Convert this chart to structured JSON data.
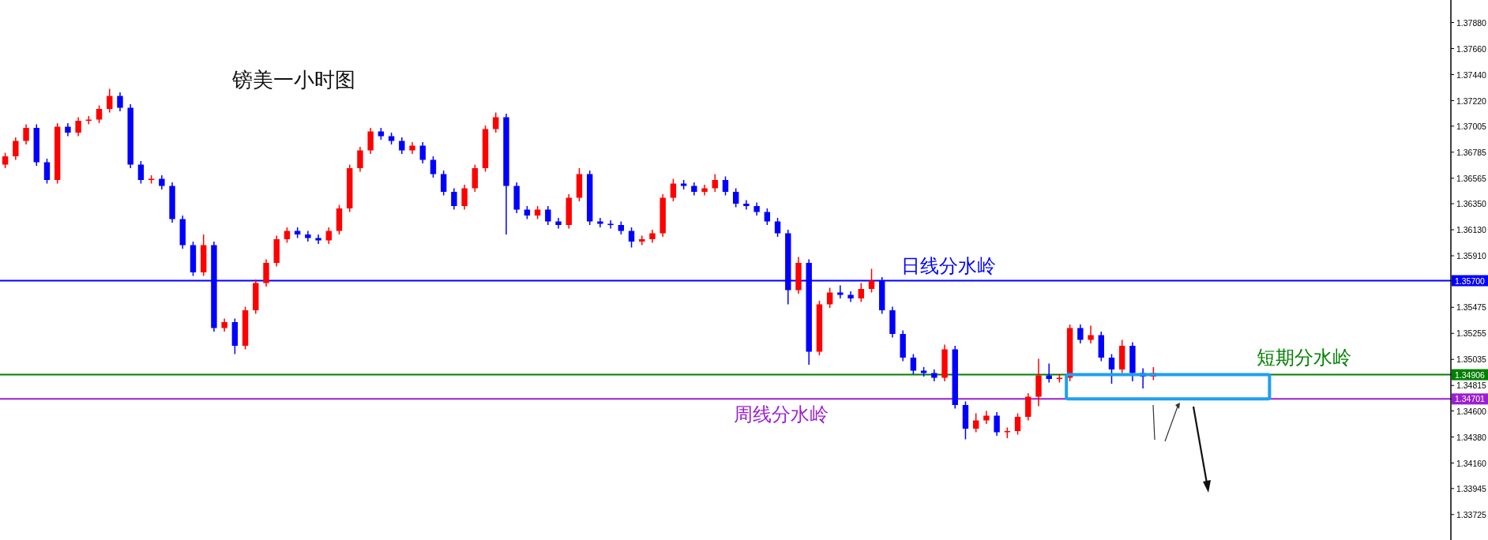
{
  "chart_data": {
    "type": "candlestick",
    "title": "镑美一小时图",
    "categories": [
      null,
      null,
      null,
      null,
      null,
      null,
      null,
      null,
      null,
      null,
      null,
      null,
      null,
      null,
      null,
      null,
      null,
      null,
      null,
      null,
      null,
      null,
      null,
      null,
      null,
      null,
      null,
      null,
      null,
      null,
      null,
      null,
      null,
      null,
      null,
      null,
      null,
      null,
      null,
      null,
      null,
      null,
      null,
      null,
      null,
      null,
      null,
      null,
      null,
      null,
      null,
      null,
      null,
      null,
      null,
      null,
      null,
      null,
      null,
      null,
      null,
      null,
      null,
      null,
      null,
      null,
      null,
      null,
      null,
      null,
      null,
      null,
      null,
      null,
      null,
      null,
      null,
      null,
      null,
      null,
      null,
      null,
      null,
      null,
      null,
      null,
      null,
      null,
      null,
      null,
      null,
      null,
      null,
      null,
      null,
      null,
      null,
      null,
      null,
      null,
      null,
      null,
      null,
      null,
      null,
      null,
      null,
      null,
      null,
      null,
      null,
      null,
      null,
      null,
      null,
      null,
      null,
      null,
      null,
      null,
      null,
      null,
      null,
      null,
      null,
      null,
      null,
      null,
      null,
      null,
      null,
      null,
      null,
      null,
      null,
      null,
      null,
      null,
      null
    ],
    "ohlc": [
      [
        1.3668,
        1.3678,
        1.3665,
        1.3675
      ],
      [
        1.3675,
        1.3691,
        1.3672,
        1.3688
      ],
      [
        1.3688,
        1.3702,
        1.3685,
        1.3699
      ],
      [
        1.3699,
        1.3702,
        1.3667,
        1.367
      ],
      [
        1.367,
        1.3673,
        1.3652,
        1.3655
      ],
      [
        1.3655,
        1.3703,
        1.3652,
        1.37
      ],
      [
        1.37,
        1.3703,
        1.3692,
        1.3695
      ],
      [
        1.3695,
        1.3708,
        1.3692,
        1.3705
      ],
      [
        1.3705,
        1.3709,
        1.3702,
        1.3706
      ],
      [
        1.3706,
        1.3718,
        1.3703,
        1.3715
      ],
      [
        1.3715,
        1.3732,
        1.3712,
        1.3726
      ],
      [
        1.3726,
        1.3729,
        1.3713,
        1.3716
      ],
      [
        1.3716,
        1.3719,
        1.3665,
        1.3668
      ],
      [
        1.3668,
        1.3671,
        1.3652,
        1.3655
      ],
      [
        1.3655,
        1.3659,
        1.3652,
        1.3656
      ],
      [
        1.3656,
        1.3659,
        1.3647,
        1.365
      ],
      [
        1.365,
        1.3653,
        1.3619,
        1.3622
      ],
      [
        1.3622,
        1.3625,
        1.3597,
        1.36
      ],
      [
        1.36,
        1.3603,
        1.3574,
        1.3577
      ],
      [
        1.3577,
        1.3609,
        1.3574,
        1.36
      ],
      [
        1.36,
        1.3603,
        1.3527,
        1.353
      ],
      [
        1.353,
        1.3538,
        1.3527,
        1.3535
      ],
      [
        1.3535,
        1.3538,
        1.3508,
        1.3515
      ],
      [
        1.3515,
        1.3548,
        1.3512,
        1.3545
      ],
      [
        1.3545,
        1.3571,
        1.3542,
        1.3568
      ],
      [
        1.3568,
        1.3588,
        1.3565,
        1.3585
      ],
      [
        1.3585,
        1.3608,
        1.3582,
        1.3605
      ],
      [
        1.3605,
        1.3615,
        1.3602,
        1.3612
      ],
      [
        1.3612,
        1.3615,
        1.3606,
        1.3609
      ],
      [
        1.3609,
        1.3612,
        1.3603,
        1.3606
      ],
      [
        1.3606,
        1.3609,
        1.3601,
        1.3604
      ],
      [
        1.3604,
        1.3615,
        1.3601,
        1.3612
      ],
      [
        1.3612,
        1.3634,
        1.3609,
        1.3631
      ],
      [
        1.3631,
        1.3668,
        1.3628,
        1.3665
      ],
      [
        1.3665,
        1.3683,
        1.3662,
        1.368
      ],
      [
        1.368,
        1.3699,
        1.3677,
        1.3696
      ],
      [
        1.3696,
        1.3699,
        1.3689,
        1.3692
      ],
      [
        1.3692,
        1.3695,
        1.3685,
        1.3688
      ],
      [
        1.3688,
        1.3691,
        1.3677,
        1.368
      ],
      [
        1.368,
        1.3687,
        1.3677,
        1.3684
      ],
      [
        1.3684,
        1.3687,
        1.3669,
        1.3672
      ],
      [
        1.3672,
        1.3675,
        1.3657,
        1.366
      ],
      [
        1.366,
        1.3663,
        1.3642,
        1.3645
      ],
      [
        1.3645,
        1.3648,
        1.363,
        1.3633
      ],
      [
        1.3633,
        1.3651,
        1.363,
        1.3648
      ],
      [
        1.3648,
        1.3668,
        1.3645,
        1.3665
      ],
      [
        1.3665,
        1.3701,
        1.3662,
        1.3698
      ],
      [
        1.3698,
        1.3712,
        1.3695,
        1.3708
      ],
      [
        1.3708,
        1.3711,
        1.3609,
        1.365
      ],
      [
        1.365,
        1.3653,
        1.3627,
        1.363
      ],
      [
        1.363,
        1.3633,
        1.3622,
        1.3625
      ],
      [
        1.3625,
        1.3633,
        1.3622,
        1.363
      ],
      [
        1.363,
        1.3633,
        1.3617,
        1.362
      ],
      [
        1.362,
        1.3623,
        1.3614,
        1.3617
      ],
      [
        1.3617,
        1.3643,
        1.3614,
        1.364
      ],
      [
        1.364,
        1.3665,
        1.3637,
        1.366
      ],
      [
        1.366,
        1.3663,
        1.3617,
        1.362
      ],
      [
        1.362,
        1.3623,
        1.3615,
        1.3618
      ],
      [
        1.3618,
        1.3621,
        1.3614,
        1.3617
      ],
      [
        1.3617,
        1.362,
        1.3609,
        1.3612
      ],
      [
        1.3612,
        1.3615,
        1.3598,
        1.3603
      ],
      [
        1.3603,
        1.3608,
        1.36,
        1.3605
      ],
      [
        1.3605,
        1.3613,
        1.3602,
        1.361
      ],
      [
        1.361,
        1.3643,
        1.3607,
        1.364
      ],
      [
        1.364,
        1.3656,
        1.3637,
        1.3652
      ],
      [
        1.3652,
        1.3655,
        1.3647,
        1.365
      ],
      [
        1.365,
        1.3653,
        1.3642,
        1.3645
      ],
      [
        1.3645,
        1.3651,
        1.3642,
        1.3648
      ],
      [
        1.3648,
        1.366,
        1.3645,
        1.3655
      ],
      [
        1.3655,
        1.3658,
        1.3642,
        1.3645
      ],
      [
        1.3645,
        1.3648,
        1.3632,
        1.3635
      ],
      [
        1.3635,
        1.3638,
        1.363,
        1.3633
      ],
      [
        1.3633,
        1.3636,
        1.3625,
        1.3628
      ],
      [
        1.3628,
        1.3631,
        1.3617,
        1.362
      ],
      [
        1.362,
        1.3623,
        1.3607,
        1.361
      ],
      [
        1.361,
        1.3613,
        1.355,
        1.3562
      ],
      [
        1.3562,
        1.359,
        1.3559,
        1.3585
      ],
      [
        1.3585,
        1.3588,
        1.3499,
        1.351
      ],
      [
        1.351,
        1.3553,
        1.3507,
        1.355
      ],
      [
        1.355,
        1.3564,
        1.3547,
        1.356
      ],
      [
        1.356,
        1.3566,
        1.3555,
        1.3558
      ],
      [
        1.3558,
        1.3561,
        1.3552,
        1.3555
      ],
      [
        1.3555,
        1.3568,
        1.3552,
        1.3563
      ],
      [
        1.3563,
        1.358,
        1.356,
        1.357
      ],
      [
        1.357,
        1.3573,
        1.3542,
        1.3545
      ],
      [
        1.3545,
        1.3548,
        1.3522,
        1.3525
      ],
      [
        1.3525,
        1.3528,
        1.3502,
        1.3505
      ],
      [
        1.3505,
        1.3508,
        1.3491,
        1.3494
      ],
      [
        1.3494,
        1.3497,
        1.3489,
        1.3492
      ],
      [
        1.3492,
        1.3495,
        1.3485,
        1.3488
      ],
      [
        1.3488,
        1.3516,
        1.3485,
        1.3512
      ],
      [
        1.3512,
        1.3515,
        1.3462,
        1.3465
      ],
      [
        1.3465,
        1.3468,
        1.3436,
        1.3445
      ],
      [
        1.3445,
        1.3458,
        1.3442,
        1.3452
      ],
      [
        1.3452,
        1.346,
        1.3449,
        1.3456
      ],
      [
        1.3456,
        1.3459,
        1.3439,
        1.3442
      ],
      [
        1.3442,
        1.3446,
        1.3437,
        1.3443
      ],
      [
        1.3443,
        1.3458,
        1.344,
        1.3455
      ],
      [
        1.3455,
        1.3475,
        1.3452,
        1.3472
      ],
      [
        1.3472,
        1.3504,
        1.3464,
        1.349
      ],
      [
        1.349,
        1.35,
        1.3484,
        1.3487
      ],
      [
        1.3487,
        1.3491,
        1.3484,
        1.3488
      ],
      [
        1.3488,
        1.3533,
        1.3485,
        1.353
      ],
      [
        1.353,
        1.3533,
        1.3517,
        1.352
      ],
      [
        1.352,
        1.3532,
        1.3517,
        1.3524
      ],
      [
        1.3524,
        1.3527,
        1.3502,
        1.3505
      ],
      [
        1.3505,
        1.3508,
        1.3483,
        1.3495
      ],
      [
        1.3495,
        1.352,
        1.3492,
        1.3515
      ],
      [
        1.3515,
        1.3518,
        1.3485,
        1.3492
      ],
      [
        1.3492,
        1.3496,
        1.3479,
        1.3489
      ],
      [
        1.3489,
        1.3497,
        1.3486,
        1.3492
      ],
      null,
      null,
      null,
      null,
      null,
      null,
      null,
      null,
      null,
      null,
      null,
      null,
      null,
      null,
      null,
      null,
      null,
      null,
      null,
      null,
      null,
      null,
      null,
      null,
      null,
      null,
      null,
      null
    ],
    "colors": [
      "#ff0000",
      "#ff0000",
      "#ff0000",
      "#0000ff",
      "#0000ff",
      "#ff0000",
      "#0000ff",
      "#ff0000",
      "#ff0000",
      "#ff0000",
      "#ff0000",
      "#0000ff",
      "#0000ff",
      "#0000ff",
      "#ff0000",
      "#0000ff",
      "#0000ff",
      "#0000ff",
      "#0000ff",
      "#ff0000",
      "#0000ff",
      "#ff0000",
      "#0000ff",
      "#ff0000",
      "#ff0000",
      "#ff0000",
      "#ff0000",
      "#ff0000",
      "#0000ff",
      "#0000ff",
      "#0000ff",
      "#ff0000",
      "#ff0000",
      "#ff0000",
      "#ff0000",
      "#ff0000",
      "#0000ff",
      "#0000ff",
      "#0000ff",
      "#ff0000",
      "#0000ff",
      "#0000ff",
      "#0000ff",
      "#0000ff",
      "#ff0000",
      "#ff0000",
      "#ff0000",
      "#ff0000",
      "#0000ff",
      "#0000ff",
      "#0000ff",
      "#ff0000",
      "#0000ff",
      "#0000ff",
      "#ff0000",
      "#ff0000",
      "#0000ff",
      "#0000ff",
      "#0000ff",
      "#0000ff",
      "#0000ff",
      "#ff0000",
      "#ff0000",
      "#ff0000",
      "#ff0000",
      "#0000ff",
      "#0000ff",
      "#ff0000",
      "#ff0000",
      "#0000ff",
      "#0000ff",
      "#0000ff",
      "#0000ff",
      "#0000ff",
      "#0000ff",
      "#0000ff",
      "#ff0000",
      "#0000ff",
      "#ff0000",
      "#ff0000",
      "#0000ff",
      "#0000ff",
      "#ff0000",
      "#ff0000",
      "#0000ff",
      "#0000ff",
      "#0000ff",
      "#0000ff",
      "#0000ff",
      "#0000ff",
      "#ff0000",
      "#0000ff",
      "#0000ff",
      "#ff0000",
      "#ff0000",
      "#0000ff",
      "#ff0000",
      "#ff0000",
      "#ff0000",
      "#ff0000",
      "#0000ff",
      "#ff0000",
      "#ff0000",
      "#0000ff",
      "#ff0000",
      "#0000ff",
      "#0000ff",
      "#ff0000",
      "#0000ff",
      "#0000ff",
      "#ff0000",
      null,
      null,
      null,
      null,
      null,
      null,
      null,
      null,
      null,
      null,
      null,
      null,
      null,
      null,
      null,
      null,
      null,
      null,
      null,
      null,
      null,
      null,
      null,
      null,
      null,
      null,
      null,
      null
    ],
    "ylim": [
      1.3351,
      1.3807
    ],
    "yticks": [
      {
        "value": 1.3788,
        "label": "1.37880"
      },
      {
        "value": 1.3766,
        "label": "1.37660"
      },
      {
        "value": 1.3744,
        "label": "1.37440"
      },
      {
        "value": 1.3722,
        "label": "1.37220"
      },
      {
        "value": 1.37005,
        "label": "1.37005"
      },
      {
        "value": 1.36785,
        "label": "1.36785"
      },
      {
        "value": 1.36565,
        "label": "1.36565"
      },
      {
        "value": 1.3635,
        "label": "1.36350"
      },
      {
        "value": 1.3613,
        "label": "1.36130"
      },
      {
        "value": 1.3591,
        "label": "1.35910"
      },
      {
        "value": 1.357,
        "label": "1.35700"
      },
      {
        "value": 1.35475,
        "label": "1.35475"
      },
      {
        "value": 1.35255,
        "label": "1.35255"
      },
      {
        "value": 1.35035,
        "label": "1.35035"
      },
      {
        "value": 1.34906,
        "label": "1.34906"
      },
      {
        "value": 1.34815,
        "label": "1.34815"
      },
      {
        "value": 1.34701,
        "label": "1.34701"
      },
      {
        "value": 1.346,
        "label": "1.34600"
      },
      {
        "value": 1.3438,
        "label": "1.34380"
      },
      {
        "value": 1.3416,
        "label": "1.34160"
      },
      {
        "value": 1.33945,
        "label": "1.33945"
      },
      {
        "value": 1.33725,
        "label": "1.33725"
      }
    ],
    "ref_lines": [
      {
        "axis": "y",
        "value": 1.357,
        "label": "日线分水岭",
        "color": "#0000ff"
      },
      {
        "axis": "y",
        "value": 1.34906,
        "label": "短期分水岭",
        "color": "#008000"
      },
      {
        "axis": "y",
        "value": 1.34701,
        "label": "周线分水岭",
        "color": "#9b1fd1"
      }
    ],
    "tick_labels": "y"
  }
}
